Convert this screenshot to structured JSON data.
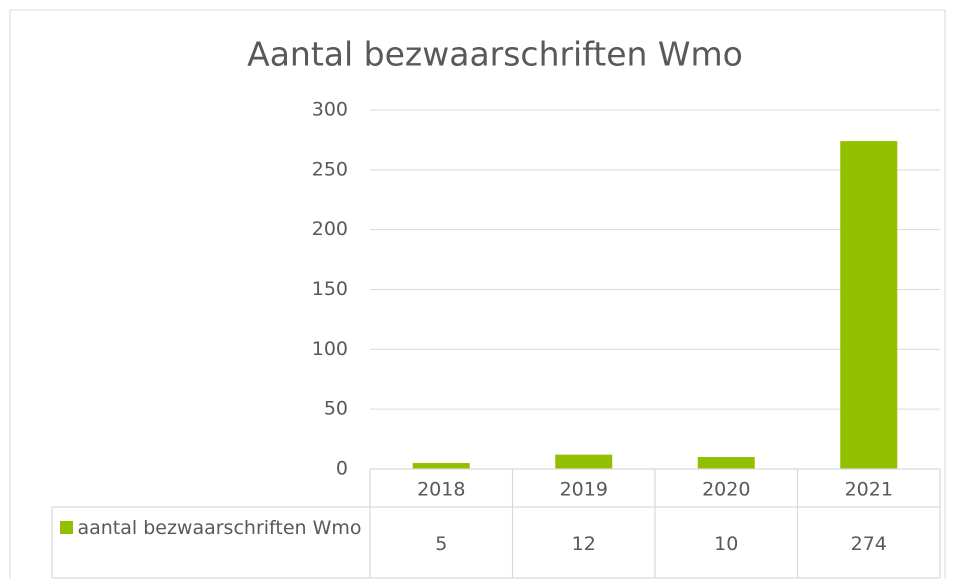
{
  "chart_data": {
    "type": "bar",
    "title": "Aantal bezwaarschriften Wmo",
    "categories": [
      "2018",
      "2019",
      "2020",
      "2021"
    ],
    "series": [
      {
        "name": "aantal bezwaarschriften Wmo",
        "color": "#92c000",
        "values": [
          5,
          12,
          10,
          274
        ]
      }
    ],
    "ylim": [
      0,
      300
    ],
    "yticks": [
      0,
      50,
      100,
      150,
      200,
      250,
      300
    ],
    "grid": true,
    "data_table": true
  }
}
